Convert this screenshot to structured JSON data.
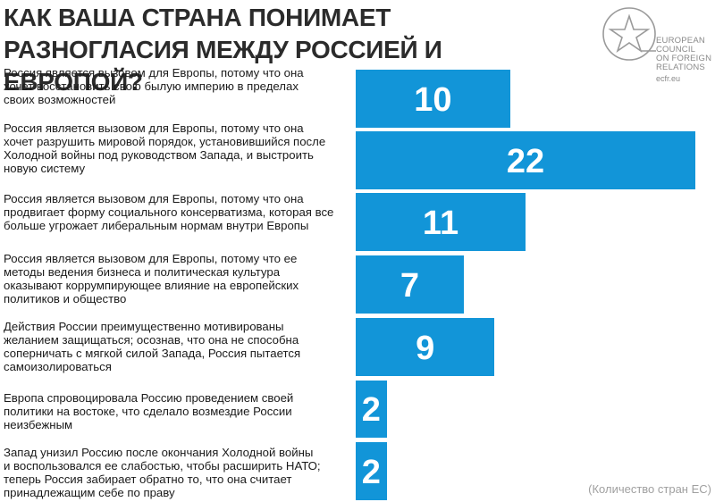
{
  "title_lines": [
    "КАК ВАША СТРАНА ПОНИМАЕТ",
    "РАЗНОГЛАСИЯ МЕЖДУ РОССИЕЙ И ЕВРОПОЙ?"
  ],
  "logo": {
    "icon": "ecfr-star-logo",
    "lines": [
      "EUROPEAN",
      "COUNCIL",
      "ON FOREIGN",
      "RELATIONS"
    ],
    "site": "ecfr.eu"
  },
  "note": "(Количество стран ЕС)",
  "colors": {
    "bar": "#1295d8",
    "title": "#2b2b2b",
    "note": "#a0a0a0"
  },
  "chart_data": {
    "type": "bar",
    "orientation": "horizontal",
    "xlim": [
      0,
      22
    ],
    "categories": [
      [
        "Россия является вызовом для Европы, потому что она",
        "хочет восстановить свою былую империю в пределах",
        "своих возможностей"
      ],
      [
        "Россия является вызовом для Европы, потому что она",
        "хочет разрушить мировой порядок, установившийся после",
        "Холодной войны под руководством Запада, и выстроить",
        "новую систему"
      ],
      [
        "Россия является вызовом для Европы, потому что она",
        "продвигает форму социального консерватизма, которая все",
        "больше угрожает либеральным нормам внутри Европы"
      ],
      [
        "Россия является вызовом для Европы, потому что ее",
        "методы ведения бизнеса и политическая культура",
        "оказывают коррумпирующее влияние на европейских",
        "политиков и общество"
      ],
      [
        "Действия России преимущественно мотивированы",
        "желанием защищаться; осознав, что она не способна",
        "соперничать с мягкой силой Запада, Россия пытается",
        "самоизолироваться"
      ],
      [
        "Европа спровоцировала Россию проведением своей",
        "политики на востоке, что сделало возмездие России",
        "неизбежным"
      ],
      [
        "Запад унизил Россию после окончания Холодной войны",
        "и воспользовался ее слабостью, чтобы расширить НАТО;",
        "теперь Россия забирает обратно то, что она считает",
        "принадлежащим себе по праву"
      ]
    ],
    "values": [
      10,
      22,
      11,
      7,
      9,
      2,
      2
    ],
    "value_labels": [
      "10",
      "22",
      "11",
      "7",
      "9",
      "2",
      "2"
    ]
  }
}
